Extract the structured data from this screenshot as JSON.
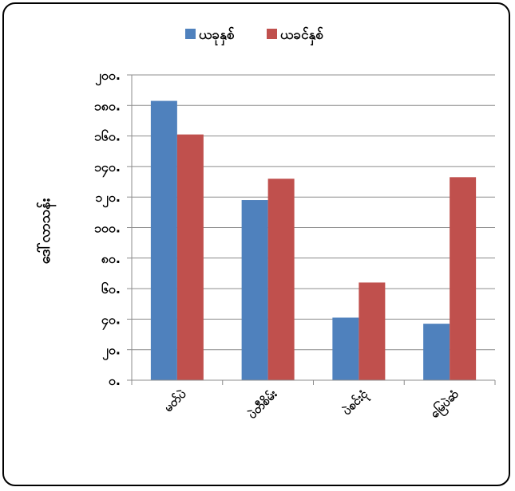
{
  "chart_data": {
    "type": "bar",
    "categories": [
      "မတ်ပဲ",
      "ပဲတီစိမ်း",
      "ပဲစင်းငုံ",
      "မြေပဲဆံ"
    ],
    "series": [
      {
        "name": "ယခုနှစ်",
        "color": "#4F81BD",
        "values": [
          183,
          118,
          41,
          37
        ]
      },
      {
        "name": "ယခင်နှစ်",
        "color": "#C0504D",
        "values": [
          161,
          132,
          64,
          133
        ]
      }
    ],
    "ylabel": "ဒေါ်လာသန်း",
    "xlabel": "",
    "ylim": [
      0,
      200
    ],
    "yticks": [
      0,
      20,
      40,
      60,
      80,
      100,
      120,
      140,
      160,
      180,
      200
    ],
    "ytick_labels": [
      "၀.",
      "၂၀.",
      "၄၀.",
      "၆၀.",
      "၈၀.",
      "၁၀၀.",
      "၁၂၀.",
      "၁၄၀.",
      "၁၆၀.",
      "၁၈၀.",
      "၂၀၀."
    ],
    "grid": true,
    "legend_position": "top"
  }
}
